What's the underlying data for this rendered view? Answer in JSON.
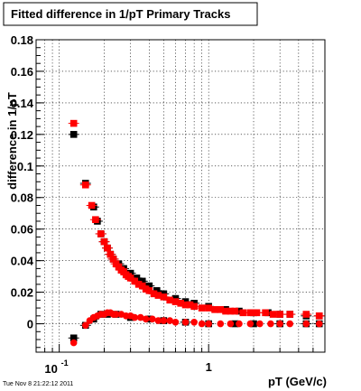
{
  "title": "Fitted difference in 1/pT  Primary Tracks",
  "timestamp": "Tue Nov  8 21:22:12 2011",
  "chart_data": {
    "type": "scatter",
    "title": "Fitted difference in 1/pT  Primary Tracks",
    "xlabel": "pT (GeV/c)",
    "ylabel": "difference in 1/pT",
    "xscale": "log",
    "xlim": [
      0.07,
      6.0
    ],
    "ylim": [
      -0.018,
      0.18
    ],
    "grid": true,
    "x_tick_labels": [
      {
        "value": 0.1,
        "base": "10",
        "exp": "-1"
      },
      {
        "value": 1,
        "base": "1",
        "exp": ""
      }
    ],
    "y_ticks": [
      0,
      0.02,
      0.04,
      0.06,
      0.08,
      0.1,
      0.12,
      0.14,
      0.16,
      0.18
    ],
    "y_tick_labels": [
      "0",
      "0.02",
      "0.04",
      "0.06",
      "0.08",
      "0.1",
      "0.12",
      "0.14",
      "0.16",
      "0.18"
    ],
    "colors": {
      "black_series": "#000000",
      "red_series": "#ff0000"
    },
    "series": [
      {
        "marker": "square",
        "color": "#000000",
        "points": [
          [
            0.125,
            0.12
          ],
          [
            0.15,
            0.089
          ],
          [
            0.17,
            0.074
          ],
          [
            0.18,
            0.065
          ],
          [
            0.19,
            0.057
          ],
          [
            0.2,
            0.052
          ],
          [
            0.21,
            0.048
          ],
          [
            0.22,
            0.044
          ],
          [
            0.23,
            0.041
          ],
          [
            0.25,
            0.038
          ],
          [
            0.27,
            0.035
          ],
          [
            0.3,
            0.032
          ],
          [
            0.33,
            0.029
          ],
          [
            0.36,
            0.027
          ],
          [
            0.4,
            0.024
          ],
          [
            0.45,
            0.021
          ],
          [
            0.5,
            0.019
          ],
          [
            0.6,
            0.016
          ],
          [
            0.7,
            0.014
          ],
          [
            0.8,
            0.013
          ],
          [
            1.0,
            0.011
          ],
          [
            1.3,
            0.009
          ],
          [
            1.6,
            0.008
          ],
          [
            2.0,
            0.007
          ],
          [
            2.5,
            0.007
          ],
          [
            3.0,
            0.006
          ],
          [
            3.5,
            0.006
          ],
          [
            4.5,
            0.005
          ],
          [
            5.5,
            0.005
          ]
        ]
      },
      {
        "marker": "square",
        "color": "#000000",
        "points": [
          [
            0.125,
            -0.009
          ],
          [
            0.15,
            -0.001
          ],
          [
            0.17,
            0.003
          ],
          [
            0.19,
            0.006
          ],
          [
            0.21,
            0.006
          ],
          [
            0.24,
            0.006
          ],
          [
            0.3,
            0.004
          ],
          [
            0.4,
            0.003
          ],
          [
            0.5,
            0.002
          ],
          [
            0.7,
            0.001
          ],
          [
            1.0,
            0.0
          ],
          [
            1.5,
            0.0
          ],
          [
            2.0,
            0.0
          ],
          [
            3.0,
            0.0
          ],
          [
            4.5,
            0.0
          ],
          [
            5.5,
            0.0
          ]
        ]
      },
      {
        "marker": "square",
        "color": "#ff0000",
        "points": [
          [
            0.125,
            0.127
          ],
          [
            0.15,
            0.088
          ],
          [
            0.165,
            0.075
          ],
          [
            0.175,
            0.066
          ],
          [
            0.19,
            0.057
          ],
          [
            0.2,
            0.052
          ],
          [
            0.21,
            0.048
          ],
          [
            0.22,
            0.044
          ],
          [
            0.23,
            0.041
          ],
          [
            0.24,
            0.038
          ],
          [
            0.25,
            0.036
          ],
          [
            0.26,
            0.034
          ],
          [
            0.27,
            0.033
          ],
          [
            0.28,
            0.031
          ],
          [
            0.29,
            0.03
          ],
          [
            0.3,
            0.029
          ],
          [
            0.32,
            0.027
          ],
          [
            0.34,
            0.025
          ],
          [
            0.36,
            0.024
          ],
          [
            0.38,
            0.022
          ],
          [
            0.4,
            0.021
          ],
          [
            0.43,
            0.019
          ],
          [
            0.46,
            0.018
          ],
          [
            0.5,
            0.017
          ],
          [
            0.55,
            0.015
          ],
          [
            0.6,
            0.014
          ],
          [
            0.65,
            0.013
          ],
          [
            0.7,
            0.012
          ],
          [
            0.75,
            0.012
          ],
          [
            0.8,
            0.011
          ],
          [
            0.9,
            0.01
          ],
          [
            1.0,
            0.01
          ],
          [
            1.1,
            0.009
          ],
          [
            1.2,
            0.009
          ],
          [
            1.3,
            0.008
          ],
          [
            1.4,
            0.008
          ],
          [
            1.5,
            0.008
          ],
          [
            1.7,
            0.007
          ],
          [
            1.9,
            0.007
          ],
          [
            2.1,
            0.007
          ],
          [
            2.4,
            0.007
          ],
          [
            2.7,
            0.006
          ],
          [
            3.0,
            0.006
          ],
          [
            3.5,
            0.006
          ],
          [
            4.5,
            0.006
          ],
          [
            5.5,
            0.005
          ]
        ]
      },
      {
        "marker": "circle",
        "color": "#ff0000",
        "points": [
          [
            0.125,
            -0.012
          ],
          [
            0.15,
            -0.001
          ],
          [
            0.16,
            0.002
          ],
          [
            0.17,
            0.004
          ],
          [
            0.18,
            0.005
          ],
          [
            0.19,
            0.006
          ],
          [
            0.2,
            0.006
          ],
          [
            0.21,
            0.007
          ],
          [
            0.22,
            0.007
          ],
          [
            0.23,
            0.006
          ],
          [
            0.24,
            0.006
          ],
          [
            0.26,
            0.006
          ],
          [
            0.28,
            0.005
          ],
          [
            0.3,
            0.005
          ],
          [
            0.32,
            0.004
          ],
          [
            0.35,
            0.004
          ],
          [
            0.38,
            0.003
          ],
          [
            0.42,
            0.003
          ],
          [
            0.46,
            0.002
          ],
          [
            0.5,
            0.002
          ],
          [
            0.55,
            0.002
          ],
          [
            0.6,
            0.001
          ],
          [
            0.7,
            0.001
          ],
          [
            0.8,
            0.001
          ],
          [
            0.9,
            0.0
          ],
          [
            1.0,
            0.0
          ],
          [
            1.2,
            0.0
          ],
          [
            1.4,
            0.0
          ],
          [
            1.6,
            0.0
          ],
          [
            1.9,
            0.0
          ],
          [
            2.2,
            0.0
          ],
          [
            2.6,
            0.0
          ],
          [
            3.0,
            0.0
          ],
          [
            3.5,
            0.0
          ],
          [
            4.5,
            0.0
          ],
          [
            5.5,
            0.0
          ]
        ]
      }
    ]
  }
}
